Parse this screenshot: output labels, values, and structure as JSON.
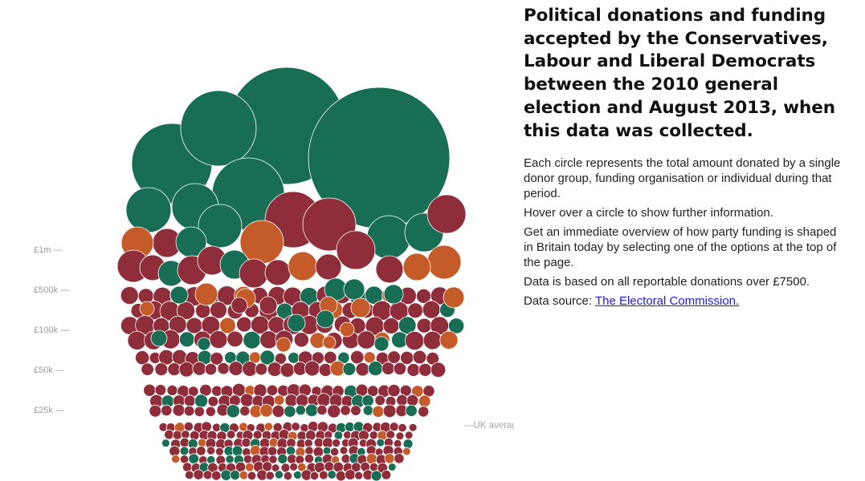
{
  "info": {
    "title": "Political donations and funding accepted by the Conservatives, Labour and Liberal Democrats between the 2010 general election and August 2013, when this data was collected.",
    "paragraphs": [
      "Each circle represents the total amount donated by a single donor group, funding organisation or individual during that period.",
      "Hover over a circle to show further information.",
      "Get an immediate overview of how party funding is shaped in Britain today by selecting one of the options at the top of the page.",
      "Data is based on all reportable donations over £7500."
    ],
    "source_prefix": "Data source: ",
    "source_link": "The Electoral Commission."
  },
  "chart_data": {
    "type": "bubble",
    "scale": "log",
    "tick_labels": [
      {
        "label": "£1m —",
        "value": 1000000
      },
      {
        "label": "£500k —",
        "value": 500000
      },
      {
        "label": "£100k —",
        "value": 100000
      },
      {
        "label": "£50k —",
        "value": 50000
      },
      {
        "label": "£25k —",
        "value": 25000
      }
    ],
    "reference_line": {
      "label": "—UK average salary"
    },
    "colors": {
      "labour": "#176e55",
      "conservative": "#8f2e3a",
      "libdem": "#c65b2a"
    }
  }
}
